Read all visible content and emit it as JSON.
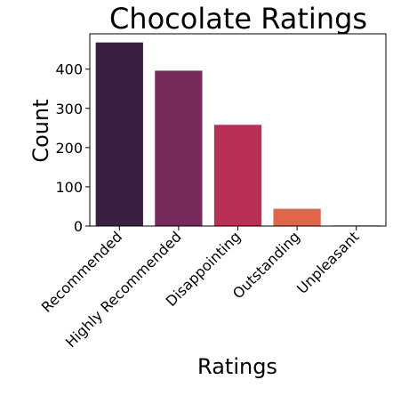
{
  "chart_data": {
    "type": "bar",
    "title": "Chocolate Ratings",
    "xlabel": "Ratings",
    "ylabel": "Count",
    "categories": [
      "Recommended",
      "Highly Recommended",
      "Disappointing",
      "Outstanding",
      "Unpleasant"
    ],
    "values": [
      468,
      396,
      258,
      44,
      2
    ],
    "colors": [
      "#3a2040",
      "#782a5a",
      "#b92f56",
      "#e06649",
      "#f2a47a"
    ],
    "ylim": [
      0,
      490
    ],
    "yticks": [
      0,
      100,
      200,
      300,
      400
    ],
    "grid": false,
    "legend": "none"
  }
}
